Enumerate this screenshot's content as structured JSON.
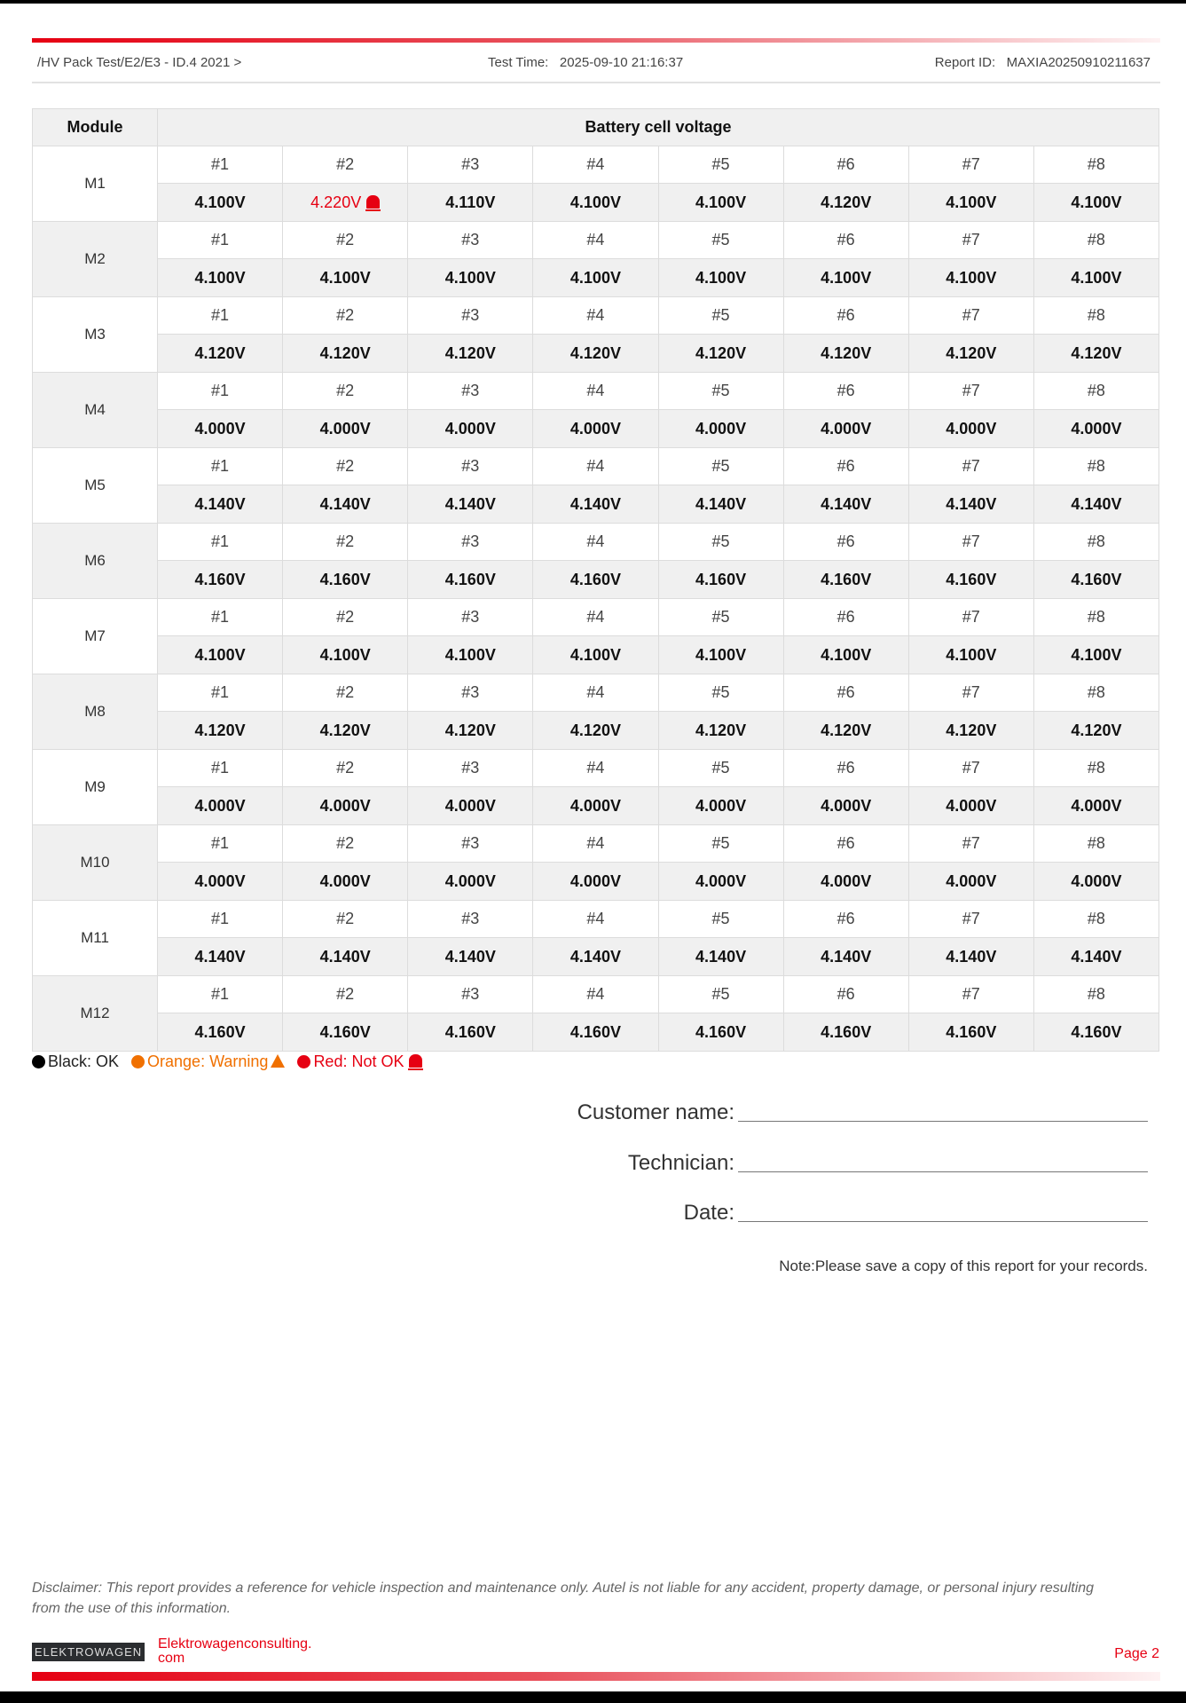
{
  "header": {
    "path": "/HV Pack Test/E2/E3 - ID.4 2021 >",
    "test_time_label": "Test Time:",
    "test_time": "2025-09-10 21:16:37",
    "report_id_label": "Report ID:",
    "report_id": "MAXIA20250910211637"
  },
  "table": {
    "col_module": "Module",
    "col_voltage": "Battery cell voltage",
    "cell_labels": [
      "#1",
      "#2",
      "#3",
      "#4",
      "#5",
      "#6",
      "#7",
      "#8"
    ],
    "modules": [
      {
        "name": "M1",
        "values": [
          "4.100V",
          "4.220V",
          "4.110V",
          "4.100V",
          "4.100V",
          "4.120V",
          "4.100V",
          "4.100V"
        ],
        "status": [
          "ok",
          "not_ok",
          "ok",
          "ok",
          "ok",
          "ok",
          "ok",
          "ok"
        ]
      },
      {
        "name": "M2",
        "values": [
          "4.100V",
          "4.100V",
          "4.100V",
          "4.100V",
          "4.100V",
          "4.100V",
          "4.100V",
          "4.100V"
        ]
      },
      {
        "name": "M3",
        "values": [
          "4.120V",
          "4.120V",
          "4.120V",
          "4.120V",
          "4.120V",
          "4.120V",
          "4.120V",
          "4.120V"
        ]
      },
      {
        "name": "M4",
        "values": [
          "4.000V",
          "4.000V",
          "4.000V",
          "4.000V",
          "4.000V",
          "4.000V",
          "4.000V",
          "4.000V"
        ]
      },
      {
        "name": "M5",
        "values": [
          "4.140V",
          "4.140V",
          "4.140V",
          "4.140V",
          "4.140V",
          "4.140V",
          "4.140V",
          "4.140V"
        ]
      },
      {
        "name": "M6",
        "values": [
          "4.160V",
          "4.160V",
          "4.160V",
          "4.160V",
          "4.160V",
          "4.160V",
          "4.160V",
          "4.160V"
        ]
      },
      {
        "name": "M7",
        "values": [
          "4.100V",
          "4.100V",
          "4.100V",
          "4.100V",
          "4.100V",
          "4.100V",
          "4.100V",
          "4.100V"
        ]
      },
      {
        "name": "M8",
        "values": [
          "4.120V",
          "4.120V",
          "4.120V",
          "4.120V",
          "4.120V",
          "4.120V",
          "4.120V",
          "4.120V"
        ]
      },
      {
        "name": "M9",
        "values": [
          "4.000V",
          "4.000V",
          "4.000V",
          "4.000V",
          "4.000V",
          "4.000V",
          "4.000V",
          "4.000V"
        ]
      },
      {
        "name": "M10",
        "values": [
          "4.000V",
          "4.000V",
          "4.000V",
          "4.000V",
          "4.000V",
          "4.000V",
          "4.000V",
          "4.000V"
        ]
      },
      {
        "name": "M11",
        "values": [
          "4.140V",
          "4.140V",
          "4.140V",
          "4.140V",
          "4.140V",
          "4.140V",
          "4.140V",
          "4.140V"
        ]
      },
      {
        "name": "M12",
        "values": [
          "4.160V",
          "4.160V",
          "4.160V",
          "4.160V",
          "4.160V",
          "4.160V",
          "4.160V",
          "4.160V"
        ]
      }
    ]
  },
  "legend": {
    "ok": "Black: OK",
    "warning": "Orange: Warning",
    "not_ok": "Red: Not OK",
    "colors": {
      "ok": "#000000",
      "warning": "#f07000",
      "not_ok": "#e60012"
    }
  },
  "signature": {
    "customer": "Customer name:",
    "technician": "Technician:",
    "date": "Date:"
  },
  "note": "Note:Please save a copy of this report for your records.",
  "disclaimer": "Disclaimer: This report provides a reference for vehicle inspection and maintenance only. Autel is not liable for any accident, property damage, or personal injury resulting from the use of this information.",
  "footer": {
    "logo": "ELEKTROWAGEN",
    "site_line1": "Elektrowagenconsulting.",
    "site_line2": "com",
    "page": "Page 2"
  }
}
